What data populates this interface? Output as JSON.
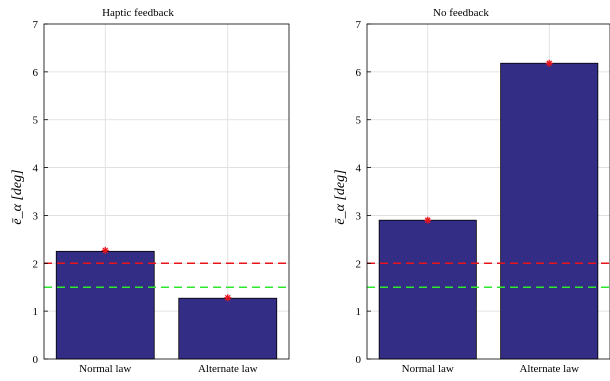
{
  "chart_data": [
    {
      "type": "bar",
      "title": "Haptic feedback",
      "ylabel": "ē_α [deg]",
      "categories": [
        "Normal law",
        "Alternate law"
      ],
      "values": [
        2.25,
        1.27
      ],
      "markers": [
        2.27,
        1.28
      ],
      "ref_lines": [
        2.0,
        1.5
      ],
      "ylim": [
        0,
        7
      ],
      "yticks": [
        0,
        1,
        2,
        3,
        4,
        5,
        6,
        7
      ],
      "grid": true
    },
    {
      "type": "bar",
      "title": "No feedback",
      "ylabel": "ē_α [deg]",
      "categories": [
        "Normal law",
        "Alternate law"
      ],
      "values": [
        2.9,
        6.18
      ],
      "markers": [
        2.9,
        6.18
      ],
      "ref_lines": [
        2.0,
        1.5
      ],
      "ylim": [
        0,
        7
      ],
      "yticks": [
        0,
        1,
        2,
        3,
        4,
        5,
        6,
        7
      ],
      "grid": true
    }
  ],
  "colors": {
    "bar": "#342d86",
    "bar_edge": "#000000",
    "marker": "#e8141b",
    "ref_red": "#e8141b",
    "ref_green": "#2ee82e",
    "grid": "#dcdcdc"
  }
}
